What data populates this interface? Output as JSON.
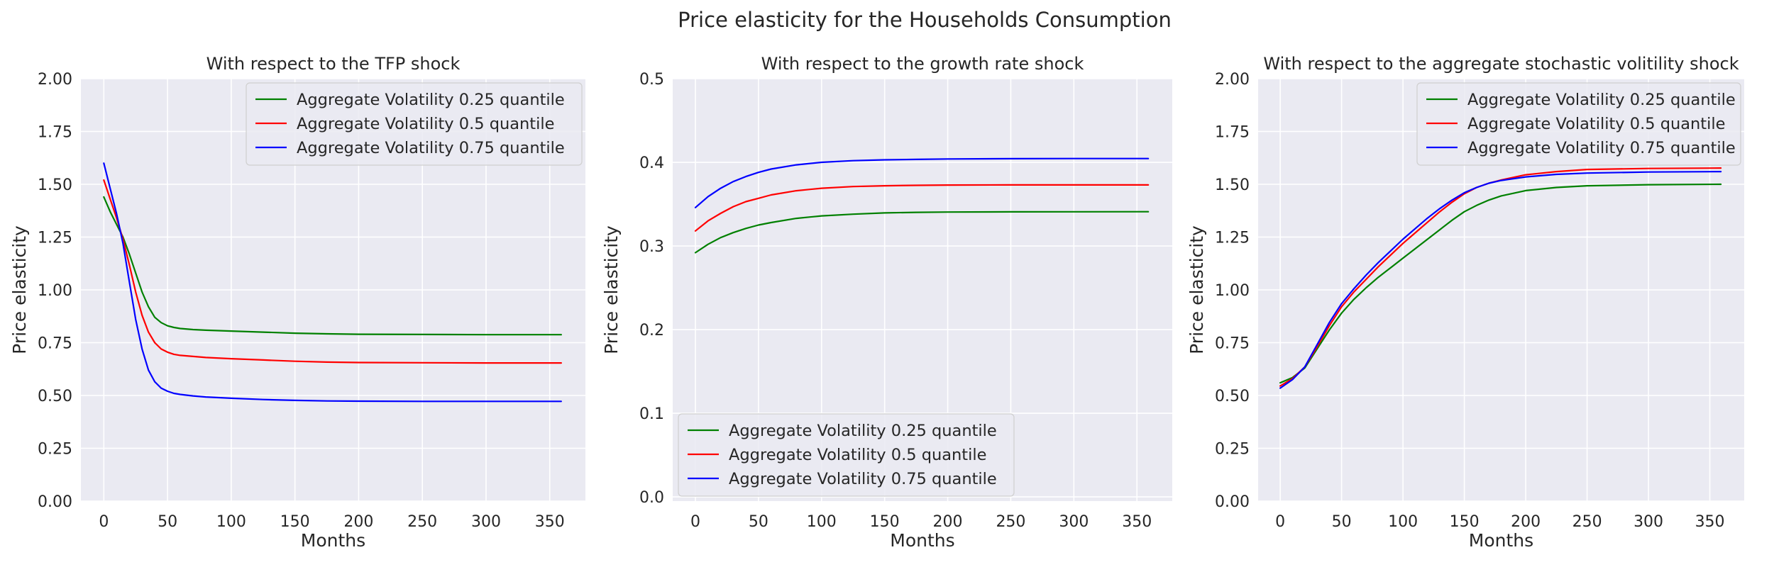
{
  "figure": {
    "suptitle": "Price elasticity for the Households Consumption"
  },
  "chart_data": [
    {
      "type": "line",
      "title": "With respect to the TFP shock",
      "xlabel": "Months",
      "ylabel": "Price elasticity",
      "xlim": [
        -18,
        378
      ],
      "ylim": [
        0,
        2.0
      ],
      "xticks": [
        0,
        50,
        100,
        150,
        200,
        250,
        300,
        350
      ],
      "yticks": [
        0.0,
        0.25,
        0.5,
        0.75,
        1.0,
        1.25,
        1.5,
        1.75,
        2.0
      ],
      "ytick_labels": [
        "0.00",
        "0.25",
        "0.50",
        "0.75",
        "1.00",
        "1.25",
        "1.50",
        "1.75",
        "2.00"
      ],
      "grid": true,
      "legend_loc": "upper right",
      "x": [
        0,
        5,
        10,
        15,
        20,
        25,
        30,
        35,
        40,
        45,
        50,
        55,
        60,
        70,
        80,
        100,
        125,
        150,
        175,
        200,
        250,
        300,
        359
      ],
      "series": [
        {
          "name": "Aggregate Volatility 0.25 quantile",
          "color": "#008000",
          "values": [
            1.44,
            1.37,
            1.31,
            1.25,
            1.17,
            1.08,
            0.99,
            0.92,
            0.87,
            0.845,
            0.83,
            0.822,
            0.817,
            0.812,
            0.809,
            0.805,
            0.8,
            0.795,
            0.792,
            0.79,
            0.789,
            0.788,
            0.788
          ]
        },
        {
          "name": "Aggregate Volatility 0.5 quantile",
          "color": "#ff0000",
          "values": [
            1.52,
            1.43,
            1.34,
            1.24,
            1.12,
            0.99,
            0.88,
            0.8,
            0.75,
            0.72,
            0.705,
            0.695,
            0.69,
            0.685,
            0.68,
            0.674,
            0.668,
            0.662,
            0.658,
            0.656,
            0.655,
            0.654,
            0.654
          ]
        },
        {
          "name": "Aggregate Volatility 0.75 quantile",
          "color": "#0000ff",
          "values": [
            1.6,
            1.48,
            1.36,
            1.22,
            1.04,
            0.86,
            0.72,
            0.62,
            0.565,
            0.535,
            0.52,
            0.51,
            0.505,
            0.498,
            0.493,
            0.487,
            0.481,
            0.477,
            0.474,
            0.473,
            0.472,
            0.472,
            0.472
          ]
        }
      ]
    },
    {
      "type": "line",
      "title": "With respect to the growth rate shock",
      "xlabel": "Months",
      "ylabel": "Price elasticity",
      "xlim": [
        -18,
        378
      ],
      "ylim": [
        -0.005,
        0.5
      ],
      "xticks": [
        0,
        50,
        100,
        150,
        200,
        250,
        300,
        350
      ],
      "yticks": [
        0.0,
        0.1,
        0.2,
        0.3,
        0.4,
        0.5
      ],
      "ytick_labels": [
        "0.0",
        "0.1",
        "0.2",
        "0.3",
        "0.4",
        "0.5"
      ],
      "grid": true,
      "legend_loc": "lower left",
      "x": [
        0,
        10,
        20,
        30,
        40,
        50,
        60,
        80,
        100,
        125,
        150,
        175,
        200,
        250,
        300,
        359
      ],
      "series": [
        {
          "name": "Aggregate Volatility 0.25 quantile",
          "color": "#008000",
          "values": [
            0.292,
            0.302,
            0.31,
            0.316,
            0.321,
            0.325,
            0.328,
            0.333,
            0.336,
            0.338,
            0.3395,
            0.3402,
            0.3405,
            0.3408,
            0.3409,
            0.341
          ]
        },
        {
          "name": "Aggregate Volatility 0.5 quantile",
          "color": "#ff0000",
          "values": [
            0.318,
            0.33,
            0.339,
            0.347,
            0.353,
            0.357,
            0.361,
            0.366,
            0.369,
            0.371,
            0.372,
            0.3725,
            0.3728,
            0.373,
            0.373,
            0.373
          ]
        },
        {
          "name": "Aggregate Volatility 0.75 quantile",
          "color": "#0000ff",
          "values": [
            0.346,
            0.359,
            0.369,
            0.377,
            0.383,
            0.388,
            0.392,
            0.397,
            0.4,
            0.402,
            0.403,
            0.4035,
            0.404,
            0.4043,
            0.4045,
            0.4045
          ]
        }
      ]
    },
    {
      "type": "line",
      "title": "With respect to the aggregate stochastic volitility shock",
      "xlabel": "Months",
      "ylabel": "Price elasticity",
      "xlim": [
        -18,
        378
      ],
      "ylim": [
        0,
        2.0
      ],
      "xticks": [
        0,
        50,
        100,
        150,
        200,
        250,
        300,
        350
      ],
      "yticks": [
        0.0,
        0.25,
        0.5,
        0.75,
        1.0,
        1.25,
        1.5,
        1.75,
        2.0
      ],
      "ytick_labels": [
        "0.00",
        "0.25",
        "0.50",
        "0.75",
        "1.00",
        "1.25",
        "1.50",
        "1.75",
        "2.00"
      ],
      "grid": true,
      "legend_loc": "upper right",
      "x": [
        0,
        10,
        20,
        30,
        40,
        50,
        60,
        70,
        80,
        90,
        100,
        110,
        120,
        130,
        140,
        150,
        160,
        170,
        180,
        200,
        225,
        250,
        300,
        359
      ],
      "series": [
        {
          "name": "Aggregate Volatility 0.25 quantile",
          "color": "#008000",
          "values": [
            0.56,
            0.585,
            0.63,
            0.72,
            0.81,
            0.89,
            0.955,
            1.01,
            1.06,
            1.105,
            1.15,
            1.195,
            1.24,
            1.285,
            1.33,
            1.37,
            1.4,
            1.425,
            1.445,
            1.47,
            1.485,
            1.493,
            1.498,
            1.5
          ]
        },
        {
          "name": "Aggregate Volatility 0.5 quantile",
          "color": "#ff0000",
          "values": [
            0.545,
            0.58,
            0.635,
            0.73,
            0.83,
            0.92,
            0.99,
            1.05,
            1.11,
            1.165,
            1.22,
            1.27,
            1.32,
            1.37,
            1.415,
            1.455,
            1.485,
            1.505,
            1.52,
            1.545,
            1.56,
            1.57,
            1.575,
            1.577
          ]
        },
        {
          "name": "Aggregate Volatility 0.75 quantile",
          "color": "#0000ff",
          "values": [
            0.535,
            0.575,
            0.635,
            0.74,
            0.845,
            0.935,
            1.005,
            1.07,
            1.13,
            1.185,
            1.24,
            1.29,
            1.34,
            1.385,
            1.425,
            1.46,
            1.485,
            1.505,
            1.518,
            1.535,
            1.547,
            1.553,
            1.558,
            1.56
          ]
        }
      ]
    }
  ]
}
